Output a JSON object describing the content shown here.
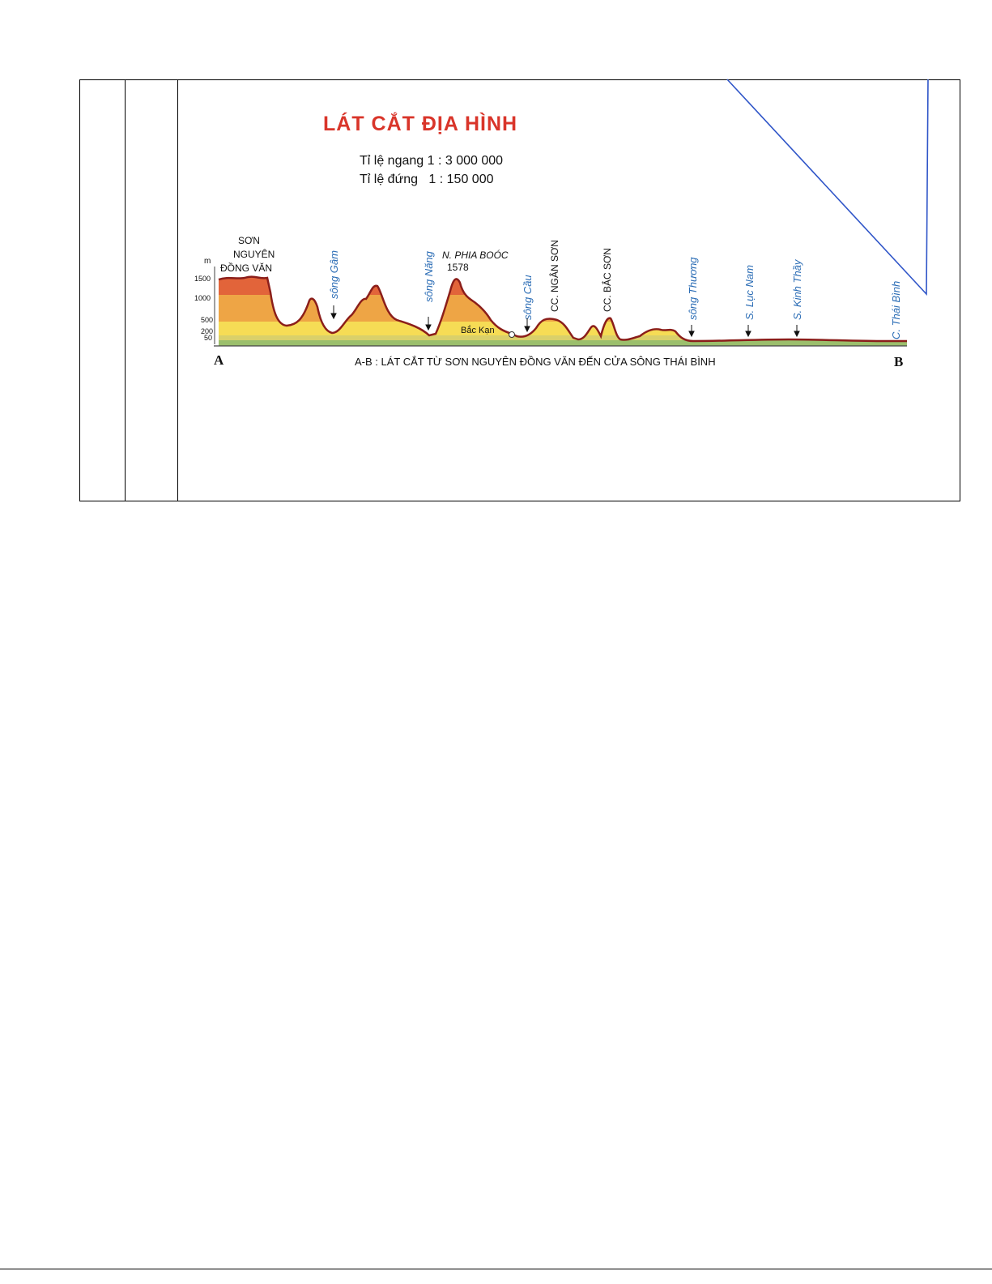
{
  "figure": {
    "title": "LÁT CẮT ĐỊA HÌNH",
    "scale_horizontal": "Tỉ lệ ngang 1 : 3 000 000",
    "scale_vertical": "Tỉ lệ đứng   1 : 150 000",
    "plateau_label": [
      "SƠN",
      "NGUYÊN",
      "ĐỒNG VĂN"
    ],
    "unit": "m",
    "elevation_ticks": [
      "1500",
      "1000",
      "500",
      "200",
      "50"
    ],
    "peak_name": "N. PHIA BOÓC",
    "peak_height": "1578",
    "town": "Bắc Kạn",
    "rivers": [
      "sông Gâm",
      "sông Năng",
      "sông Cầu",
      "sông Thương",
      "S. Lục Nam",
      "S. Kinh Thầy",
      "C. Thái Bình"
    ],
    "ranges": [
      "CC. NGÂN SƠN",
      "CC. BẮC SƠN"
    ],
    "endpoint_a": "A",
    "endpoint_b": "B",
    "caption": "A-B : LÁT CẮT TỪ SƠN NGUYÊN ĐỒNG VĂN ĐẾN CỬA SÔNG THÁI BÌNH",
    "colors": {
      "title": "#d9352a",
      "river_text": "#2a6cb5",
      "band_high": "#e2643a",
      "band_mid": "#eea545",
      "band_low": "#f6dc55",
      "outline": "#8b1e1a",
      "overlay_line": "#2f55c8"
    }
  }
}
